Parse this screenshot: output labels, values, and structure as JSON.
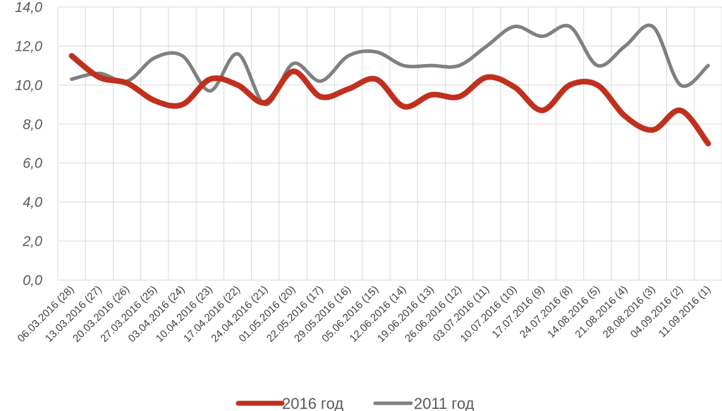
{
  "chart_data": {
    "type": "line",
    "categories": [
      "06.03.2016 (28)",
      "13.03.2016 (27)",
      "20.03.2016 (26)",
      "27.03.2016 (25)",
      "03.04.2016 (24)",
      "10.04.2016 (23)",
      "17.04.2016 (22)",
      "24.04.2016 (21)",
      "01.05.2016 (20)",
      "22.05.2016 (17)",
      "29.05.2016 (16)",
      "05.06.2016 (15)",
      "12.06.2016 (14)",
      "19.06.2016 (13)",
      "26.06.2016 (12)",
      "03.07.2016 (11)",
      "10.07.2016 (10)",
      "17.07.2016 (9)",
      "24.07.2016 (8)",
      "14.08.2016 (5)",
      "21.08.2016 (4)",
      "28.08.2016 (3)",
      "04.09.2016 (2)",
      "11.09.2016 (1)"
    ],
    "series": [
      {
        "name": "2016 год",
        "color": "#c0301e",
        "values": [
          11.5,
          10.4,
          10.1,
          9.2,
          9.0,
          10.3,
          10.0,
          9.1,
          10.7,
          9.4,
          9.8,
          10.3,
          8.9,
          9.5,
          9.4,
          10.4,
          9.9,
          8.7,
          10.0,
          10.0,
          8.4,
          7.7,
          8.7,
          7.0
        ]
      },
      {
        "name": "2011 год",
        "color": "#808080",
        "values": [
          10.3,
          10.6,
          10.2,
          11.4,
          11.5,
          9.7,
          11.6,
          9.0,
          11.1,
          10.2,
          11.5,
          11.7,
          11.0,
          11.0,
          11.0,
          12.0,
          13.0,
          12.5,
          13.0,
          11.0,
          12.0,
          13.0,
          10.0,
          11.0
        ]
      }
    ],
    "yticks": [
      "0,0",
      "2,0",
      "4,0",
      "6,0",
      "8,0",
      "10,0",
      "12,0",
      "14,0"
    ],
    "ylim": [
      0,
      14
    ],
    "grid": true,
    "legend_position": "bottom",
    "title": "",
    "xlabel": "",
    "ylabel": ""
  }
}
